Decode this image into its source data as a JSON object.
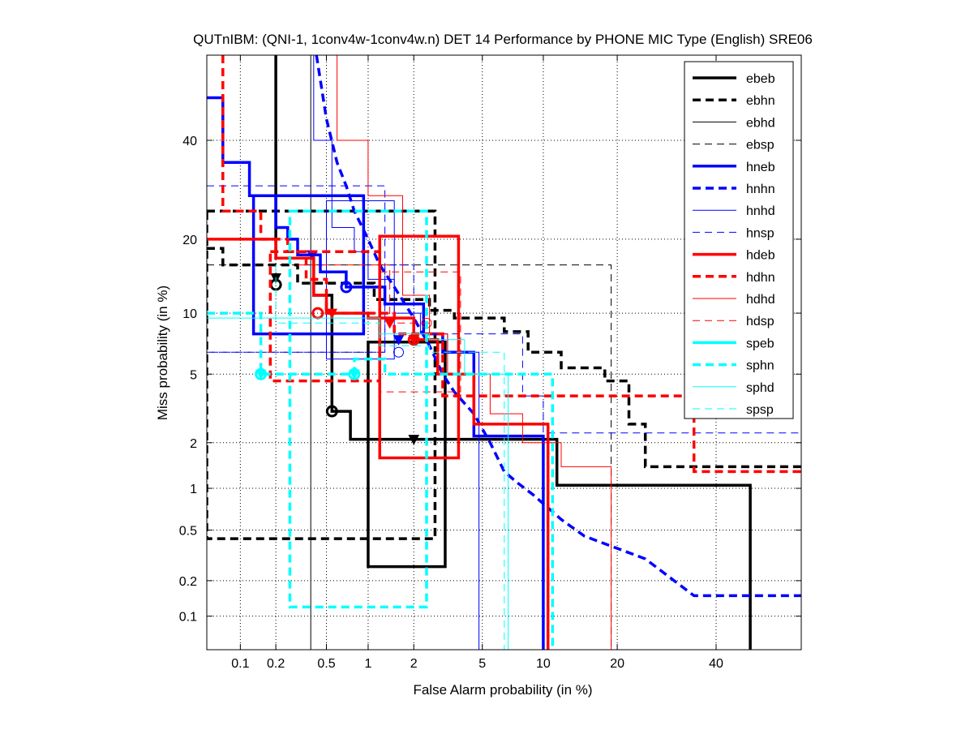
{
  "chart_data": {
    "type": "line",
    "title": "QUTnIBM: (QNI-1, 1conv4w-1conv4w.n) DET 14 Performance by PHONE MIC Type (English) SRE06",
    "xlabel": "False Alarm probability (in %)",
    "ylabel": "Miss probability (in %)",
    "scale": "normal-deviate (probit) on both axes",
    "xlim": [
      0.05,
      60
    ],
    "ylim": [
      0.05,
      60
    ],
    "x_ticks": [
      0.1,
      0.2,
      0.5,
      1,
      2,
      5,
      10,
      20,
      40
    ],
    "x_tick_labels": [
      "0.1",
      "0.2",
      "0.5",
      "1",
      "2",
      "5",
      "10",
      "20",
      "40"
    ],
    "y_ticks": [
      0.1,
      0.2,
      0.5,
      1,
      2,
      5,
      10,
      20,
      40
    ],
    "y_tick_labels": [
      "0.1",
      "0.2",
      "0.5",
      "1",
      "2",
      "5",
      "10",
      "20",
      "40"
    ],
    "grid": true,
    "legend_position": "top-right",
    "series": [
      {
        "name": "ebeb",
        "color": "#000000",
        "style": "solid",
        "weight": "thick",
        "points": [
          [
            0.2,
            60
          ],
          [
            0.2,
            17
          ],
          [
            0.4,
            17
          ],
          [
            0.4,
            12
          ],
          [
            0.55,
            12
          ],
          [
            0.55,
            3.1
          ],
          [
            0.75,
            3.1
          ],
          [
            0.75,
            2.1
          ],
          [
            11.5,
            2.1
          ],
          [
            11.5,
            1.05
          ],
          [
            48,
            1.05
          ],
          [
            48,
            0.05
          ]
        ],
        "box": [
          1.0,
          3.1,
          0.26,
          7.3
        ],
        "act": [
          2.0,
          2.1
        ],
        "min": [
          0.55,
          3.1
        ]
      },
      {
        "name": "ebhn",
        "color": "#000000",
        "style": "dashed",
        "weight": "thick",
        "points": [
          [
            0.05,
            18.5
          ],
          [
            0.07,
            18.5
          ],
          [
            0.07,
            16
          ],
          [
            0.3,
            16
          ],
          [
            0.3,
            13.5
          ],
          [
            1.1,
            13.5
          ],
          [
            1.1,
            11.5
          ],
          [
            2.5,
            11.5
          ],
          [
            2.5,
            10.3
          ],
          [
            3.5,
            10.3
          ],
          [
            3.5,
            9.5
          ],
          [
            6.5,
            9.5
          ],
          [
            6.5,
            8.2
          ],
          [
            8.5,
            8.2
          ],
          [
            8.5,
            6.5
          ],
          [
            12,
            6.5
          ],
          [
            12,
            5.4
          ],
          [
            18,
            5.4
          ],
          [
            18,
            4.6
          ],
          [
            22,
            4.6
          ],
          [
            22,
            2.6
          ],
          [
            25,
            2.6
          ],
          [
            25,
            1.4
          ],
          [
            60,
            1.4
          ]
        ],
        "box": [
          0.05,
          2.7,
          0.43,
          25
        ],
        "act": [
          0.2,
          14.2
        ],
        "min": [
          0.2,
          13.3
        ]
      },
      {
        "name": "ebhd",
        "color": "#000000",
        "style": "solid",
        "weight": "thin",
        "points": [
          [
            0.38,
            60
          ],
          [
            0.38,
            0.05
          ]
        ],
        "box": null,
        "act": null,
        "min": null
      },
      {
        "name": "ebsp",
        "color": "#000000",
        "style": "dashed",
        "weight": "thin",
        "points": [
          [
            0.05,
            16
          ],
          [
            19,
            16
          ],
          [
            19,
            0.05
          ]
        ],
        "box": null,
        "act": null,
        "min": null
      },
      {
        "name": "hneb",
        "color": "#0000ff",
        "style": "solid",
        "weight": "thick",
        "points": [
          [
            0.05,
            50
          ],
          [
            0.07,
            50
          ],
          [
            0.07,
            35
          ],
          [
            0.12,
            35
          ],
          [
            0.12,
            28
          ],
          [
            0.2,
            28
          ],
          [
            0.2,
            22
          ],
          [
            0.25,
            22
          ],
          [
            0.25,
            20
          ],
          [
            0.3,
            20
          ],
          [
            0.3,
            17.5
          ],
          [
            0.45,
            17.5
          ],
          [
            0.45,
            15
          ],
          [
            0.7,
            15
          ],
          [
            0.7,
            13
          ],
          [
            1.3,
            13
          ],
          [
            1.3,
            11
          ],
          [
            2.3,
            11
          ],
          [
            2.3,
            8
          ],
          [
            3,
            8
          ],
          [
            3,
            6.5
          ],
          [
            4.5,
            6.5
          ],
          [
            4.5,
            2.2
          ],
          [
            10,
            2.2
          ],
          [
            10,
            0.05
          ]
        ],
        "box": [
          0.13,
          0.93,
          8,
          28
        ],
        "act": [
          0.39,
          17.5
        ],
        "min": [
          0.7,
          13
        ]
      },
      {
        "name": "hnhn",
        "color": "#0000ff",
        "style": "dashed",
        "weight": "thick",
        "points": [
          [
            0.42,
            60
          ],
          [
            0.5,
            45
          ],
          [
            0.6,
            35
          ],
          [
            0.7,
            30
          ],
          [
            0.8,
            25
          ],
          [
            1.0,
            20
          ],
          [
            1.2,
            16
          ],
          [
            1.5,
            13
          ],
          [
            2,
            9.5
          ],
          [
            2.5,
            7
          ],
          [
            3,
            5
          ],
          [
            3.5,
            4
          ],
          [
            4.5,
            3
          ],
          [
            5.5,
            2
          ],
          [
            6.5,
            1.3
          ],
          [
            7.5,
            1.1
          ],
          [
            9,
            0.9
          ],
          [
            12,
            0.6
          ],
          [
            15,
            0.45
          ],
          [
            25,
            0.3
          ],
          [
            35,
            0.15
          ],
          [
            60,
            0.15
          ]
        ],
        "box": null,
        "act": null,
        "min": null
      },
      {
        "name": "hnhd",
        "color": "#0000ff",
        "style": "solid",
        "weight": "thin",
        "points": [
          [
            0.4,
            60
          ],
          [
            0.4,
            40
          ],
          [
            0.55,
            40
          ],
          [
            0.55,
            22
          ],
          [
            0.8,
            22
          ],
          [
            0.8,
            18
          ],
          [
            1.0,
            18
          ],
          [
            1.0,
            14
          ],
          [
            1.5,
            14
          ],
          [
            1.5,
            10
          ],
          [
            2.2,
            10
          ],
          [
            2.2,
            8
          ],
          [
            3.2,
            8
          ],
          [
            3.2,
            6.5
          ],
          [
            4.8,
            6.5
          ],
          [
            4.8,
            0.05
          ]
        ],
        "box": [
          0.5,
          1.5,
          6,
          27
        ],
        "act": [
          1.6,
          7.5
        ],
        "min": [
          1.6,
          6.5
        ]
      },
      {
        "name": "hnsp",
        "color": "#0000ff",
        "style": "dashed",
        "weight": "thin",
        "points": [
          [
            0.05,
            6.5
          ],
          [
            1.3,
            6.5
          ],
          [
            1.3,
            16
          ],
          [
            2,
            16
          ],
          [
            2,
            8
          ],
          [
            8,
            8
          ],
          [
            8,
            3.8
          ],
          [
            10,
            3.8
          ],
          [
            10,
            2.3
          ],
          [
            60,
            2.3
          ]
        ],
        "box": [
          0.05,
          1.3,
          6.5,
          30
        ],
        "act": null,
        "min": null
      },
      {
        "name": "hdeb",
        "color": "#ff0000",
        "style": "solid",
        "weight": "thick",
        "points": [
          [
            0.05,
            20
          ],
          [
            0.2,
            20
          ],
          [
            0.2,
            17
          ],
          [
            0.4,
            17
          ],
          [
            0.4,
            12
          ],
          [
            0.5,
            12
          ],
          [
            0.5,
            10
          ],
          [
            1.0,
            10
          ],
          [
            1.0,
            9.5
          ],
          [
            2.0,
            9.5
          ],
          [
            2.0,
            7.5
          ],
          [
            2.8,
            7.5
          ],
          [
            2.8,
            5
          ],
          [
            4.5,
            5
          ],
          [
            4.5,
            2.6
          ],
          [
            10.5,
            2.6
          ],
          [
            10.5,
            0.05
          ]
        ],
        "box": [
          1.2,
          3.7,
          1.6,
          20.5
        ],
        "act": [
          0.55,
          10
        ],
        "min": [
          0.43,
          10
        ]
      },
      {
        "name": "hdhn",
        "color": "#ff0000",
        "style": "dashed",
        "weight": "thick",
        "points": [
          [
            0.07,
            60
          ],
          [
            0.07,
            25
          ],
          [
            0.15,
            25
          ],
          [
            0.15,
            20
          ],
          [
            0.25,
            20
          ],
          [
            0.25,
            18
          ],
          [
            0.35,
            18
          ],
          [
            0.35,
            14
          ],
          [
            0.5,
            14
          ],
          [
            0.5,
            10
          ],
          [
            1.5,
            10
          ],
          [
            1.5,
            8
          ],
          [
            3,
            8
          ],
          [
            3,
            3.8
          ],
          [
            35,
            3.8
          ],
          [
            35,
            1.3
          ],
          [
            60,
            1.3
          ]
        ],
        "box": [
          0.18,
          1.2,
          4.6,
          18
        ],
        "act": [
          2.0,
          7.5
        ],
        "min": [
          2.0,
          7.5
        ]
      },
      {
        "name": "hdhd",
        "color": "#ff0000",
        "style": "solid",
        "weight": "thin",
        "points": [
          [
            0.6,
            60
          ],
          [
            0.6,
            40
          ],
          [
            1.0,
            40
          ],
          [
            1.0,
            28
          ],
          [
            1.7,
            28
          ],
          [
            1.7,
            12
          ],
          [
            2.5,
            12
          ],
          [
            2.5,
            8
          ],
          [
            3.2,
            8
          ],
          [
            3.2,
            5
          ],
          [
            5.5,
            5
          ],
          [
            5.5,
            3
          ],
          [
            8,
            3
          ],
          [
            8,
            2
          ],
          [
            12,
            2
          ],
          [
            12,
            1.4
          ],
          [
            19,
            1.4
          ],
          [
            19,
            0.05
          ]
        ],
        "box": null,
        "act": null,
        "min": null
      },
      {
        "name": "hdsp",
        "color": "#ff0000",
        "style": "dashed",
        "weight": "thin",
        "points": [
          [
            0.3,
            16
          ],
          [
            1.4,
            16
          ],
          [
            1.4,
            9
          ],
          [
            2.5,
            9
          ],
          [
            2.5,
            7.5
          ],
          [
            3.5,
            7.5
          ]
        ],
        "box": [
          1.2,
          3.8,
          4,
          15
        ],
        "act": [
          1.4,
          9
        ],
        "min": [
          2.4,
          9
        ]
      },
      {
        "name": "speb",
        "color": "#00ffff",
        "style": "solid",
        "weight": "thick",
        "points": [
          [
            0.16,
            0.05
          ]
        ],
        "box": null,
        "act": [
          0.15,
          5
        ],
        "min": [
          0.15,
          5
        ]
      },
      {
        "name": "sphn",
        "color": "#00ffff",
        "style": "dashed",
        "weight": "thick",
        "points": [
          [
            0.05,
            10
          ],
          [
            0.15,
            10
          ],
          [
            0.15,
            5
          ],
          [
            0.8,
            5
          ],
          [
            0.8,
            6
          ],
          [
            1.3,
            6
          ],
          [
            1.3,
            5
          ],
          [
            11,
            5
          ],
          [
            11,
            0.05
          ]
        ],
        "box": [
          0.26,
          2.4,
          0.12,
          25
        ],
        "act": [
          0.8,
          5
        ],
        "min": [
          0.8,
          5
        ]
      },
      {
        "name": "sphd",
        "color": "#00ffff",
        "style": "solid",
        "weight": "thin",
        "points": [
          [
            0.05,
            9.5
          ],
          [
            1.2,
            9.5
          ],
          [
            1.2,
            8
          ],
          [
            2.5,
            8
          ],
          [
            2.5,
            7.5
          ],
          [
            4,
            7.5
          ],
          [
            4,
            5
          ],
          [
            6.8,
            5
          ],
          [
            6.8,
            0.05
          ]
        ],
        "box": null,
        "act": null,
        "min": null
      },
      {
        "name": "spsp",
        "color": "#00ffff",
        "style": "dashed",
        "weight": "thin",
        "points": [
          [
            0.2,
            16
          ],
          [
            0.2,
            9
          ],
          [
            1.2,
            9
          ],
          [
            1.2,
            7
          ],
          [
            2.5,
            7
          ],
          [
            2.5,
            6.5
          ],
          [
            6.5,
            6.5
          ],
          [
            6.5,
            0.05
          ]
        ],
        "box": null,
        "act": null,
        "min": null
      }
    ]
  }
}
